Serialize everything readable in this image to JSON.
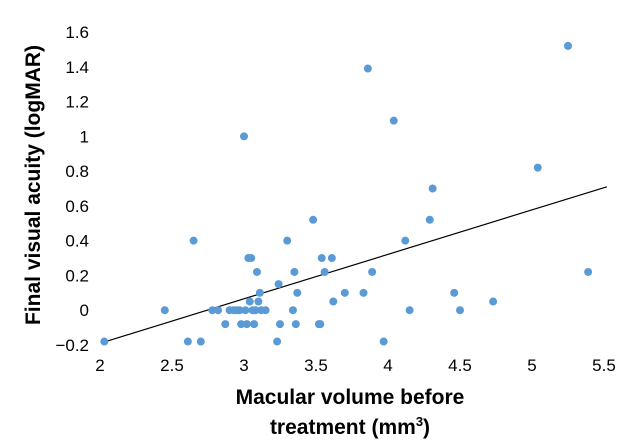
{
  "chart_data": {
    "type": "scatter",
    "title": "",
    "ylabel": "Final visual acuity (logMAR)",
    "xlabel": {
      "line1": "Macular volume before",
      "line2_prefix": "treatment (mm",
      "line2_sup": "3",
      "line2_suffix": ")"
    },
    "xlim": [
      2,
      5.5
    ],
    "ylim": [
      -0.2,
      1.6
    ],
    "x_ticks": [
      "2",
      "2.5",
      "3",
      "3.5",
      "4",
      "4.5",
      "5",
      "5.5"
    ],
    "y_ticks": [
      "−0.2",
      "0",
      "0.2",
      "0.4",
      "0.6",
      "0.8",
      "1",
      "1.2",
      "1.4",
      "1.6"
    ],
    "grid": false,
    "marker_color": "#5B9BD5",
    "trendline_color": "#000000",
    "trendline": {
      "x": [
        2.04,
        5.52
      ],
      "y": [
        -0.18,
        0.71
      ]
    },
    "points": [
      {
        "x": 2.03,
        "y": -0.18
      },
      {
        "x": 2.45,
        "y": 0.0
      },
      {
        "x": 2.61,
        "y": -0.18
      },
      {
        "x": 2.65,
        "y": 0.4
      },
      {
        "x": 2.7,
        "y": -0.18
      },
      {
        "x": 2.78,
        "y": 0.0
      },
      {
        "x": 2.82,
        "y": 0.0
      },
      {
        "x": 2.87,
        "y": -0.08
      },
      {
        "x": 2.9,
        "y": 0.0
      },
      {
        "x": 2.93,
        "y": 0.0
      },
      {
        "x": 2.95,
        "y": 0.0
      },
      {
        "x": 2.97,
        "y": 0.0
      },
      {
        "x": 2.98,
        "y": -0.08
      },
      {
        "x": 3.0,
        "y": 1.0
      },
      {
        "x": 3.01,
        "y": 0.0
      },
      {
        "x": 3.02,
        "y": -0.08
      },
      {
        "x": 3.03,
        "y": 0.3
      },
      {
        "x": 3.04,
        "y": 0.05
      },
      {
        "x": 3.05,
        "y": 0.3
      },
      {
        "x": 3.06,
        "y": 0.0
      },
      {
        "x": 3.07,
        "y": -0.08
      },
      {
        "x": 3.08,
        "y": 0.0
      },
      {
        "x": 3.09,
        "y": 0.22
      },
      {
        "x": 3.1,
        "y": 0.05
      },
      {
        "x": 3.11,
        "y": 0.1
      },
      {
        "x": 3.12,
        "y": 0.0
      },
      {
        "x": 3.15,
        "y": 0.0
      },
      {
        "x": 3.23,
        "y": -0.18
      },
      {
        "x": 3.24,
        "y": 0.15
      },
      {
        "x": 3.25,
        "y": -0.08
      },
      {
        "x": 3.3,
        "y": 0.4
      },
      {
        "x": 3.34,
        "y": 0.0
      },
      {
        "x": 3.35,
        "y": 0.22
      },
      {
        "x": 3.36,
        "y": -0.08
      },
      {
        "x": 3.37,
        "y": 0.1
      },
      {
        "x": 3.48,
        "y": 0.52
      },
      {
        "x": 3.52,
        "y": -0.08
      },
      {
        "x": 3.53,
        "y": -0.08
      },
      {
        "x": 3.54,
        "y": 0.3
      },
      {
        "x": 3.56,
        "y": 0.22
      },
      {
        "x": 3.61,
        "y": 0.3
      },
      {
        "x": 3.62,
        "y": 0.05
      },
      {
        "x": 3.7,
        "y": 0.1
      },
      {
        "x": 3.83,
        "y": 0.1
      },
      {
        "x": 3.86,
        "y": 1.39
      },
      {
        "x": 3.89,
        "y": 0.22
      },
      {
        "x": 3.97,
        "y": -0.18
      },
      {
        "x": 4.04,
        "y": 1.09
      },
      {
        "x": 4.12,
        "y": 0.4
      },
      {
        "x": 4.15,
        "y": 0.0
      },
      {
        "x": 4.29,
        "y": 0.52
      },
      {
        "x": 4.31,
        "y": 0.7
      },
      {
        "x": 4.46,
        "y": 0.1
      },
      {
        "x": 4.5,
        "y": 0.0
      },
      {
        "x": 4.73,
        "y": 0.05
      },
      {
        "x": 5.04,
        "y": 0.82
      },
      {
        "x": 5.25,
        "y": 1.52
      },
      {
        "x": 5.39,
        "y": 0.22
      }
    ]
  }
}
